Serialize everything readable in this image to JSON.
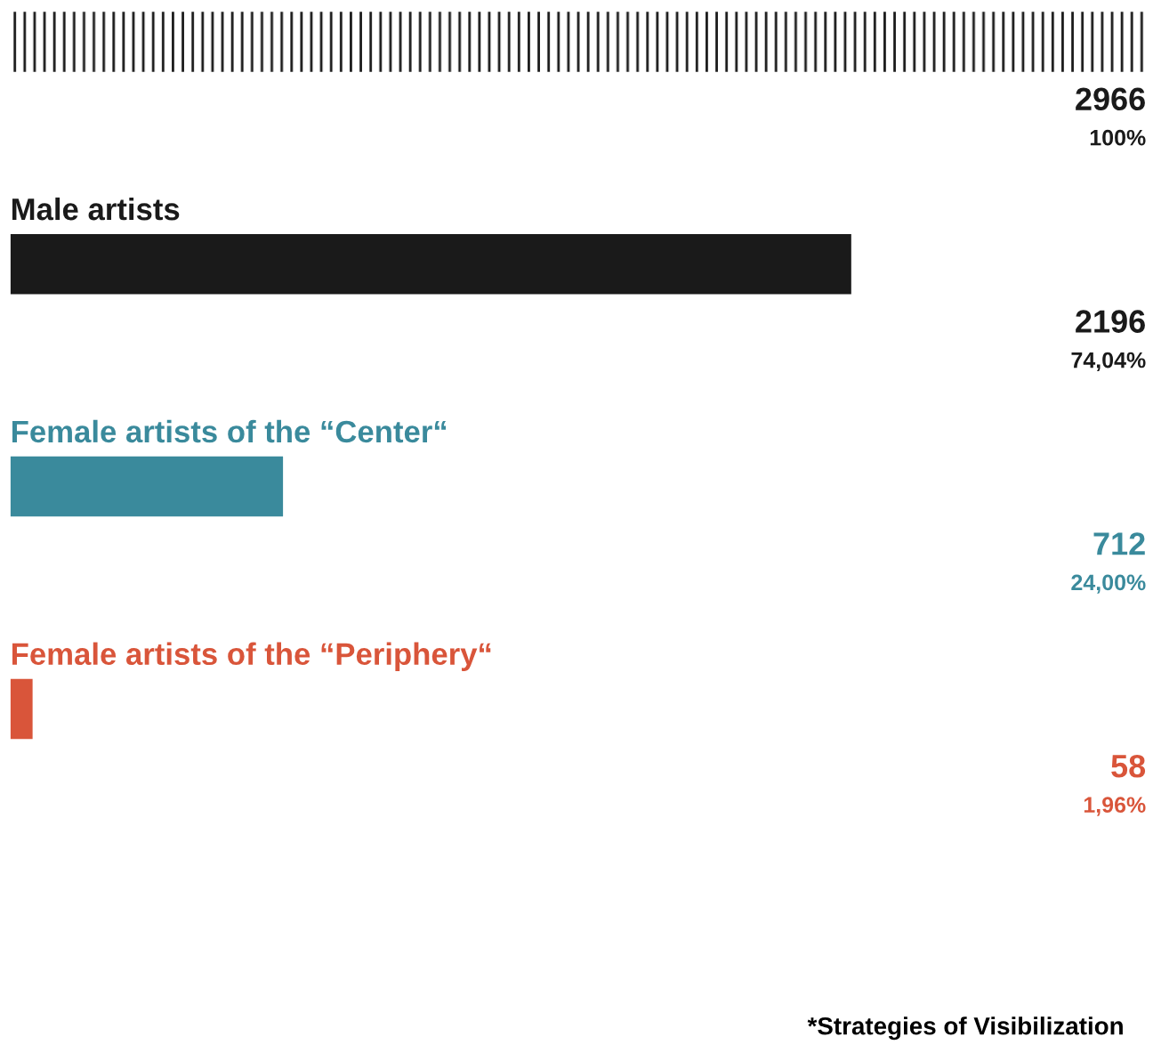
{
  "chart_data": {
    "type": "bar",
    "orientation": "horizontal",
    "categories": [
      null,
      "Male artists",
      "Female artists of the “Center“",
      "Female artists of the “Periphery“"
    ],
    "values": [
      2966,
      2196,
      712,
      58
    ],
    "colors": [
      "#1a1a1a",
      "#1a1a1a",
      "#3a8a9c",
      "#d9553a"
    ],
    "xlim": [
      0,
      2966
    ],
    "data_labels": true,
    "legend": false,
    "annotations": [
      "100%",
      "74,04%",
      "24,00%",
      "1,96%",
      "*Strategies of Visibilization"
    ]
  }
}
